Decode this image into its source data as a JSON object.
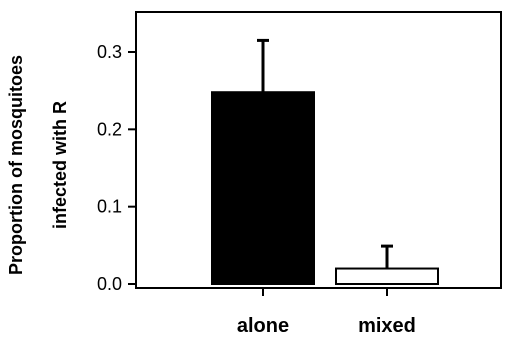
{
  "chart_data": {
    "type": "bar",
    "categories": [
      "alone",
      "mixed"
    ],
    "values": [
      0.248,
      0.02
    ],
    "error_upper": [
      0.315,
      0.049
    ],
    "bar_colors": [
      "#000000",
      "#ffffff"
    ],
    "ylabel_lines": [
      "Proportion of mosquitoes",
      "infected with R"
    ],
    "xlabel": "",
    "title": "",
    "ylim": [
      0,
      0.35
    ],
    "yticks": [
      0.0,
      0.1,
      0.2,
      0.3
    ],
    "ytick_labels": [
      "0.0",
      "0.1",
      "0.2",
      "0.3"
    ],
    "grid": false,
    "legend": "none"
  }
}
